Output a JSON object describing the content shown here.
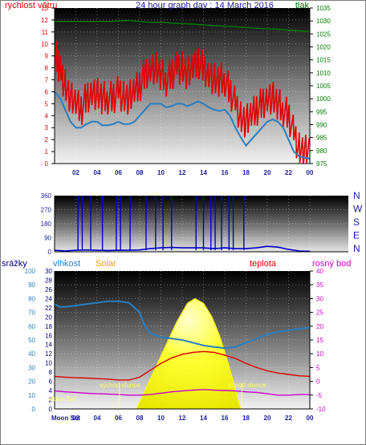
{
  "colors": {
    "wind": "#e00000",
    "wind_avg": "#2a7fc0",
    "pressure": "#007a00",
    "direction": "#0000cc",
    "humidity": "#2a7fc0",
    "solar": "#ffff00",
    "temperature": "#dd0000",
    "dewpoint": "#cc00cc",
    "rain": "#000080",
    "annotation": "#ffff66"
  },
  "chart_data": [
    {
      "type": "line",
      "title": "24 hour graph day : 14 March 2016",
      "left_label": "rychlost větru",
      "right_label": "tlak",
      "x_ticks": [
        "02",
        "04",
        "06",
        "08",
        "10",
        "12",
        "14",
        "16",
        "18",
        "20",
        "22",
        "00"
      ],
      "y_left_ticks": [
        "0",
        "1",
        "2",
        "3",
        "4",
        "5",
        "6",
        "7",
        "8",
        "9",
        "10",
        "11",
        "12",
        "13"
      ],
      "y_right_ticks": [
        "975",
        "980",
        "985",
        "990",
        "995",
        "1000",
        "1005",
        "1010",
        "1015",
        "1020",
        "1025",
        "1030",
        "1035"
      ],
      "ylim_left": [
        0,
        13
      ],
      "ylim_right": [
        975,
        1035
      ],
      "xlim": [
        0,
        24
      ],
      "series": [
        {
          "key": "wind_gust",
          "axis": "left",
          "x": [
            0,
            0.3,
            0.6,
            1,
            1.5,
            2,
            2.5,
            3,
            3.5,
            4,
            4.5,
            5,
            5.5,
            6,
            6.5,
            7,
            7.5,
            8,
            8.5,
            9,
            9.5,
            10,
            10.5,
            11,
            11.5,
            12,
            12.5,
            13,
            13.5,
            14,
            14.5,
            15,
            15.5,
            16,
            16.5,
            17,
            17.5,
            18,
            18.5,
            19,
            19.5,
            20,
            20.5,
            21,
            21.5,
            22,
            22.5,
            23,
            23.5,
            24
          ],
          "values": [
            9.5,
            8.5,
            7.5,
            6.5,
            5.5,
            5,
            4.5,
            5.5,
            6,
            5.8,
            5.5,
            5.5,
            5.5,
            6,
            5.5,
            5.5,
            6,
            6.5,
            7.5,
            8,
            8,
            7.5,
            7,
            7.5,
            8,
            8,
            7.5,
            8,
            8.5,
            8,
            7.5,
            7,
            7,
            7,
            6,
            5,
            3.8,
            3.5,
            4,
            4.5,
            5,
            5.5,
            5.5,
            5,
            4.5,
            4,
            2.5,
            1.2,
            1,
            1
          ]
        },
        {
          "key": "wind_avg",
          "axis": "left",
          "x": [
            0,
            0.5,
            1,
            1.5,
            2,
            2.5,
            3,
            3.5,
            4,
            4.5,
            5,
            5.5,
            6,
            6.5,
            7,
            7.5,
            8,
            8.5,
            9,
            9.5,
            10,
            10.5,
            11,
            11.5,
            12,
            12.5,
            13,
            13.5,
            14,
            14.5,
            15,
            15.5,
            16,
            16.5,
            17,
            17.5,
            18,
            18.5,
            19,
            19.5,
            20,
            20.5,
            21,
            21.5,
            22,
            22.5,
            23,
            23.5,
            24
          ],
          "values": [
            6,
            5.5,
            4.5,
            3.5,
            3,
            3,
            3.3,
            3.5,
            3.5,
            3.2,
            3.2,
            3.3,
            3.5,
            3.3,
            3.3,
            3.5,
            4,
            4.5,
            5,
            5,
            5,
            4.7,
            4.8,
            5,
            5,
            4.8,
            5,
            5.2,
            5,
            4.7,
            4.5,
            4.4,
            4.5,
            4,
            3,
            2.2,
            1.5,
            2,
            2.5,
            3,
            3.5,
            3.7,
            3.5,
            3,
            2,
            1,
            0.6,
            0.5,
            0.4
          ]
        },
        {
          "key": "pressure",
          "axis": "right",
          "x": [
            0,
            1,
            2,
            3,
            4,
            5,
            6,
            7,
            8,
            9,
            10,
            11,
            12,
            13,
            14,
            15,
            16,
            17,
            18,
            19,
            20,
            21,
            22,
            23,
            24
          ],
          "values": [
            1029.8,
            1029.8,
            1029.8,
            1029.8,
            1029.8,
            1029.8,
            1030,
            1030.2,
            1029.8,
            1029.5,
            1029.5,
            1029.2,
            1029,
            1028.8,
            1028.5,
            1028.2,
            1028,
            1027.8,
            1027.5,
            1027.2,
            1027,
            1026.8,
            1026.5,
            1026.2,
            1026
          ]
        }
      ]
    },
    {
      "type": "line",
      "ylabel_right": "N W S E N",
      "y_ticks": [
        "0",
        "90",
        "180",
        "270",
        "360"
      ],
      "ylim": [
        0,
        360
      ],
      "xlim": [
        0,
        24
      ],
      "series": [
        {
          "key": "wind_direction",
          "x": [
            0,
            1,
            2,
            3,
            4,
            5,
            6,
            7,
            8,
            9,
            10,
            11,
            12,
            13,
            14,
            15,
            16,
            17,
            18,
            19,
            20,
            21,
            22,
            23,
            24
          ],
          "values": [
            10,
            5,
            10,
            12,
            10,
            8,
            10,
            10,
            12,
            20,
            25,
            28,
            25,
            25,
            25,
            20,
            25,
            20,
            20,
            25,
            35,
            30,
            15,
            5,
            3
          ]
        },
        {
          "key": "wind_direction_spikes",
          "x": [
            2.2,
            2.6,
            3.4,
            4.5,
            5.8,
            6.2,
            7.1,
            8.6,
            9.5,
            10.2,
            11.0,
            13.3,
            14.0,
            14.7,
            15.1,
            15.7,
            16.4,
            16.8,
            17.8
          ],
          "values": [
            360,
            360,
            360,
            360,
            360,
            360,
            360,
            360,
            360,
            360,
            360,
            360,
            360,
            360,
            360,
            360,
            360,
            360,
            360
          ]
        }
      ],
      "direction_letters": [
        "N",
        "W",
        "S",
        "E",
        "N"
      ]
    },
    {
      "type": "area",
      "labels": {
        "rain": "srážky",
        "humidity": "vlhkost",
        "solar": "Solar",
        "temperature": "teplota",
        "dewpoint": "rosný bod"
      },
      "annotations": {
        "sunrise": "východ slunce",
        "sunset": "západ slunce",
        "moonset": "Moon Set",
        "moon_label": "Moon Set"
      },
      "x_ticks": [
        "02",
        "04",
        "06",
        "08",
        "10",
        "12",
        "14",
        "16",
        "18",
        "20",
        "22",
        "00"
      ],
      "y_left_ticks": [
        "0",
        "10",
        "20",
        "30",
        "40",
        "50",
        "60",
        "70",
        "80",
        "90",
        "100"
      ],
      "y_left2_ticks": [
        "0",
        "2",
        "4",
        "6",
        "8",
        "10",
        "12",
        "14",
        "16",
        "18",
        "20",
        "22",
        "24",
        "26",
        "28",
        "30"
      ],
      "y_right_ticks": [
        "-10",
        "-5",
        "0",
        "5",
        "10",
        "15",
        "20",
        "25",
        "30",
        "35",
        "40"
      ],
      "ylim_left": [
        0,
        100
      ],
      "ylim_right": [
        -10,
        40
      ],
      "xlim": [
        0,
        24
      ],
      "series": [
        {
          "key": "humidity",
          "axis": "left",
          "x": [
            0,
            0.5,
            1,
            2,
            3,
            4,
            5,
            6,
            7,
            8,
            8.5,
            9,
            10,
            11,
            12,
            13,
            14,
            15,
            16,
            17,
            18,
            19,
            20,
            21,
            22,
            23,
            24
          ],
          "values": [
            76,
            74,
            74,
            75,
            76,
            77,
            78,
            78,
            77,
            70,
            60,
            55,
            52,
            51,
            50,
            48,
            46,
            45,
            44,
            45,
            48,
            51,
            54,
            56,
            57,
            58,
            59
          ]
        },
        {
          "key": "temperature",
          "axis": "right",
          "x": [
            0,
            1,
            2,
            3,
            4,
            5,
            6,
            7,
            8,
            9,
            10,
            11,
            12,
            13,
            14,
            15,
            16,
            17,
            18,
            19,
            20,
            21,
            22,
            23,
            24
          ],
          "values": [
            1.8,
            1.5,
            1.3,
            1.2,
            1,
            0.8,
            0.5,
            0.5,
            1.5,
            4,
            6.5,
            8.5,
            9.8,
            10.5,
            10.8,
            10.5,
            9.5,
            8.3,
            6.5,
            5,
            3.8,
            3,
            2.5,
            2,
            1.8
          ]
        },
        {
          "key": "dewpoint",
          "axis": "right",
          "x": [
            0,
            1,
            2,
            3,
            4,
            5,
            6,
            7,
            8,
            9,
            10,
            11,
            12,
            13,
            14,
            15,
            16,
            17,
            18,
            19,
            20,
            21,
            22,
            23,
            24
          ],
          "values": [
            -3.5,
            -3.8,
            -4,
            -4.3,
            -4.5,
            -4.6,
            -4.8,
            -5,
            -5,
            -4.8,
            -4.3,
            -3.8,
            -3.5,
            -3.2,
            -3,
            -3.2,
            -3.3,
            -3.5,
            -3.8,
            -4,
            -4.5,
            -5,
            -5,
            -4.8,
            -4.8
          ]
        },
        {
          "key": "solar",
          "axis": "left2",
          "x": [
            7.7,
            8.5,
            9.5,
            10.5,
            11.5,
            12.5,
            13.2,
            14,
            14.8,
            15.5,
            16.2,
            16.8,
            17.5
          ],
          "values": [
            0,
            4,
            9,
            14,
            19,
            23,
            24,
            23,
            20,
            16,
            11,
            6,
            0
          ]
        },
        {
          "key": "rain",
          "axis": "left",
          "x": [
            0,
            24
          ],
          "values": [
            0,
            0
          ]
        }
      ]
    }
  ]
}
